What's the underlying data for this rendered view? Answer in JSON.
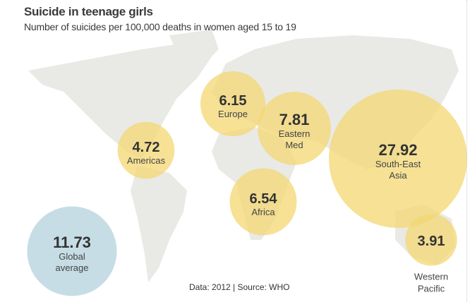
{
  "header": {
    "title": "Suicide in teenage girls",
    "subtitle": "Number of suicides per 100,000 deaths in women aged 15 to 19"
  },
  "footer": {
    "source": "Data: 2012 | Source: WHO"
  },
  "colors": {
    "region": "#f3d772",
    "global": "#c6dde5",
    "map": "#e9e9e6",
    "text": "#3a3a3a"
  },
  "chart_data": {
    "type": "bubble-map",
    "title": "Suicide in teenage girls",
    "subtitle": "Number of suicides per 100,000 deaths in women aged 15 to 19",
    "regions": [
      {
        "name": "Europe",
        "label": [
          "Europe"
        ],
        "value": 6.15,
        "value_label": "6.15"
      },
      {
        "name": "Eastern Med",
        "label": [
          "Eastern",
          "Med"
        ],
        "value": 7.81,
        "value_label": "7.81"
      },
      {
        "name": "Americas",
        "label": [
          "Americas"
        ],
        "value": 4.72,
        "value_label": "4.72"
      },
      {
        "name": "South-East Asia",
        "label": [
          "South-East",
          "Asia"
        ],
        "value": 27.92,
        "value_label": "27.92"
      },
      {
        "name": "Africa",
        "label": [
          "Africa"
        ],
        "value": 6.54,
        "value_label": "6.54"
      },
      {
        "name": "Western Pacific",
        "label": [
          "Western",
          "Pacific"
        ],
        "value": 3.91,
        "value_label": "3.91"
      }
    ],
    "global": {
      "name": "Global average",
      "label": [
        "Global",
        "average"
      ],
      "value": 11.73,
      "value_label": "11.73"
    }
  }
}
